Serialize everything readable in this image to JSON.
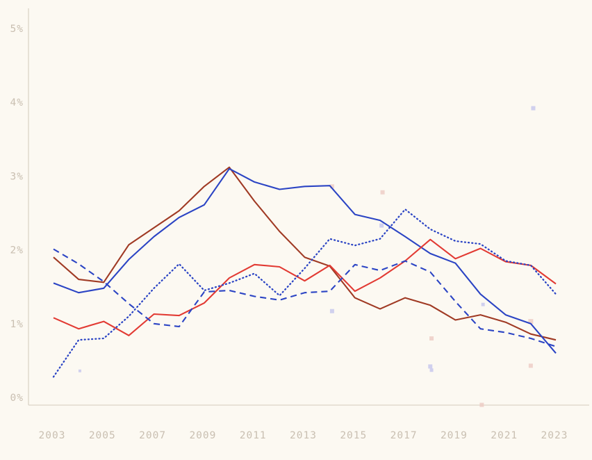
{
  "page": {
    "background": "#fcf9f2",
    "axis_color": "#dbd4c7",
    "label_color": "#c9bfb1"
  },
  "chart_data": {
    "type": "line",
    "title": "",
    "xlabel": "",
    "ylabel": "",
    "x": [
      2003,
      2004,
      2005,
      2006,
      2007,
      2008,
      2009,
      2010,
      2011,
      2012,
      2013,
      2014,
      2015,
      2016,
      2017,
      2018,
      2019,
      2020,
      2021,
      2022,
      2023
    ],
    "ylim": [
      0,
      5
    ],
    "grid": false,
    "legend": "none",
    "y_ticks": [
      {
        "label": "0%",
        "value": 0
      },
      {
        "label": "1%",
        "value": 1
      },
      {
        "label": "2%",
        "value": 2
      },
      {
        "label": "3%",
        "value": 3
      },
      {
        "label": "4%",
        "value": 4
      },
      {
        "label": "5%",
        "value": 5
      }
    ],
    "x_ticks": [
      {
        "label": "2003",
        "value": 2003
      },
      {
        "label": "2005",
        "value": 2005
      },
      {
        "label": "2007",
        "value": 2007
      },
      {
        "label": "2009",
        "value": 2009
      },
      {
        "label": "2011",
        "value": 2011
      },
      {
        "label": "2013",
        "value": 2013
      },
      {
        "label": "2015",
        "value": 2015
      },
      {
        "label": "2017",
        "value": 2017
      },
      {
        "label": "2019",
        "value": 2019
      },
      {
        "label": "2021",
        "value": 2021
      },
      {
        "label": "2023",
        "value": 2023
      }
    ],
    "series": [
      {
        "name": "dark-red-solid",
        "color": "#a03a24",
        "style": "solid",
        "values": [
          1.9,
          1.6,
          1.56,
          2.07,
          2.3,
          2.53,
          2.86,
          3.12,
          2.66,
          2.25,
          1.9,
          1.78,
          1.35,
          1.2,
          1.35,
          1.25,
          1.05,
          1.12,
          1.02,
          0.86,
          0.78
        ]
      },
      {
        "name": "blue-solid",
        "color": "#2b44c4",
        "style": "solid",
        "values": [
          1.55,
          1.42,
          1.48,
          1.87,
          2.18,
          2.44,
          2.61,
          3.1,
          2.92,
          2.82,
          2.86,
          2.87,
          2.48,
          2.4,
          2.18,
          1.95,
          1.82,
          1.4,
          1.12,
          1.0,
          0.6
        ]
      },
      {
        "name": "red-solid",
        "color": "#e23a33",
        "style": "solid",
        "values": [
          1.08,
          0.93,
          1.03,
          0.84,
          1.13,
          1.11,
          1.28,
          1.62,
          1.8,
          1.77,
          1.58,
          1.79,
          1.44,
          1.62,
          1.85,
          2.14,
          1.88,
          2.02,
          1.84,
          1.79,
          1.54
        ]
      },
      {
        "name": "blue-dashed",
        "color": "#2b44c4",
        "style": "dashed",
        "values": [
          2.01,
          1.81,
          1.57,
          1.27,
          1.0,
          0.96,
          1.43,
          1.45,
          1.37,
          1.32,
          1.42,
          1.44,
          1.8,
          1.72,
          1.85,
          1.7,
          1.3,
          0.93,
          0.88,
          0.8,
          0.69
        ]
      },
      {
        "name": "blue-dotted",
        "color": "#2b44c4",
        "style": "dotted",
        "values": [
          0.28,
          0.78,
          0.8,
          1.1,
          1.48,
          1.81,
          1.45,
          1.55,
          1.68,
          1.38,
          1.75,
          2.15,
          2.06,
          2.15,
          2.55,
          2.28,
          2.12,
          2.08,
          1.85,
          1.79,
          1.4
        ]
      }
    ],
    "marker_colors": {
      "lavender": "#c4c6ec",
      "pink": "#eccac3"
    },
    "markers": [
      {
        "x": 2004.05,
        "y": 0.36,
        "c": "lavender",
        "s": 4
      },
      {
        "x": 2014.09,
        "y": 1.17,
        "c": "lavender",
        "s": 6
      },
      {
        "x": 2016.06,
        "y": 2.33,
        "c": "lavender",
        "s": 6
      },
      {
        "x": 2018.0,
        "y": 0.42,
        "c": "lavender",
        "s": 6
      },
      {
        "x": 2018.05,
        "y": 0.37,
        "c": "lavender",
        "s": 5
      },
      {
        "x": 2020.1,
        "y": 1.26,
        "c": "lavender",
        "s": 5
      },
      {
        "x": 2022.1,
        "y": 3.92,
        "c": "lavender",
        "s": 6
      },
      {
        "x": 2014.09,
        "y": 2.86,
        "c": "pink",
        "s": 6
      },
      {
        "x": 2016.1,
        "y": 2.78,
        "c": "pink",
        "s": 6
      },
      {
        "x": 2018.05,
        "y": 0.8,
        "c": "pink",
        "s": 6
      },
      {
        "x": 2022.0,
        "y": 1.03,
        "c": "pink",
        "s": 7
      },
      {
        "x": 2022.0,
        "y": 0.43,
        "c": "pink",
        "s": 6
      },
      {
        "x": 2020.05,
        "y": -0.1,
        "c": "pink",
        "s": 6
      }
    ]
  }
}
